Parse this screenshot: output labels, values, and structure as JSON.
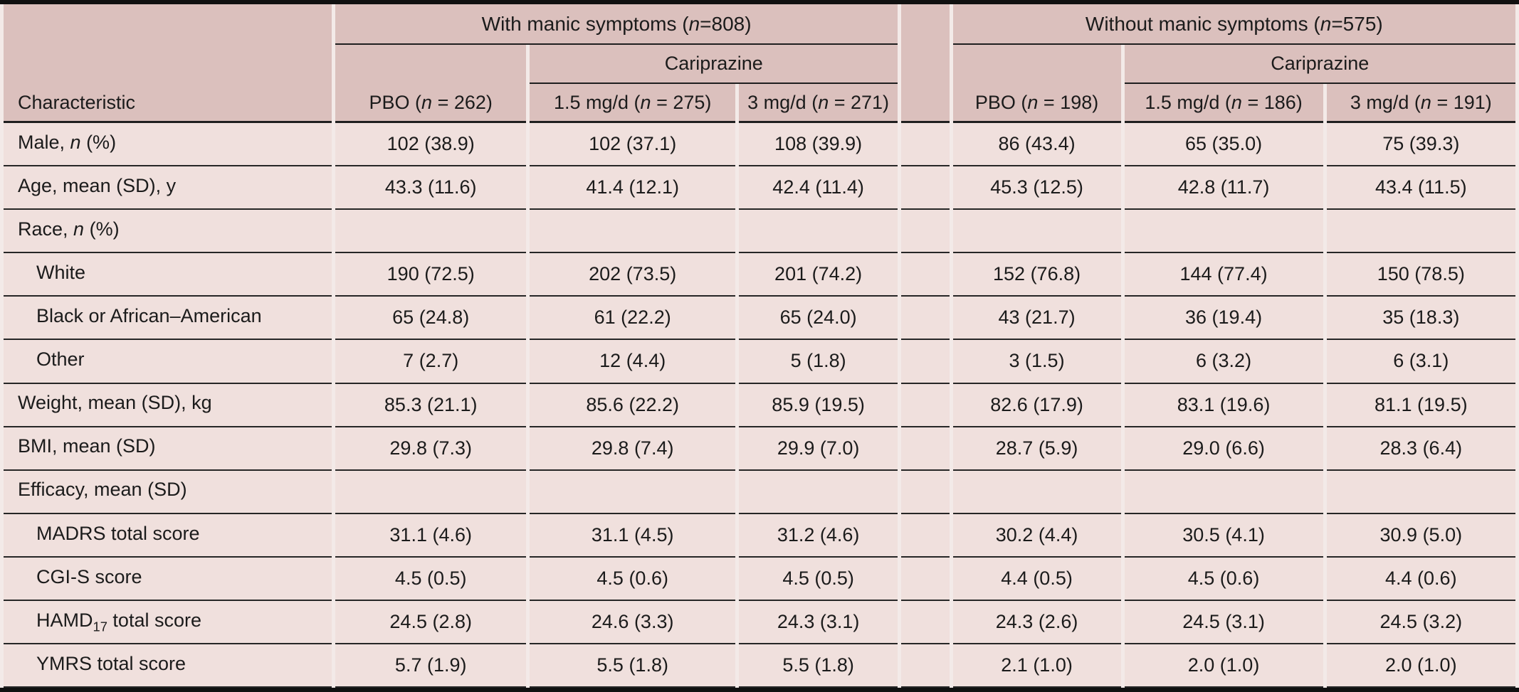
{
  "header": {
    "characteristic": "Characteristic",
    "group_with": {
      "pre": "With manic symptoms (",
      "it": "n",
      "post": "=808)"
    },
    "group_without": {
      "pre": "Without manic symptoms (",
      "it": "n",
      "post": "=575)"
    },
    "subgroup_left": "Cariprazine",
    "subgroup_right": "Cariprazine",
    "cols": [
      {
        "pre": "PBO (",
        "it": "n",
        "post": " = 262)"
      },
      {
        "pre": "1.5 mg/d (",
        "it": "n",
        "post": " = 275)"
      },
      {
        "pre": "3 mg/d (",
        "it": "n",
        "post": " = 271)"
      },
      {
        "pre": "PBO (",
        "it": "n",
        "post": " = 198)"
      },
      {
        "pre": "1.5 mg/d (",
        "it": "n",
        "post": " = 186)"
      },
      {
        "pre": "3 mg/d (",
        "it": "n",
        "post": " = 191)"
      }
    ]
  },
  "rows": [
    {
      "label": {
        "pre": "Male, ",
        "it": "n",
        "post": " (%)"
      },
      "indent": false,
      "values": [
        "102 (38.9)",
        "102 (37.1)",
        "108 (39.9)",
        "86 (43.4)",
        "65 (35.0)",
        "75 (39.3)"
      ]
    },
    {
      "label": {
        "pre": "Age, mean (SD), y"
      },
      "indent": false,
      "values": [
        "43.3 (11.6)",
        "41.4 (12.1)",
        "42.4 (11.4)",
        "45.3 (12.5)",
        "42.8 (11.7)",
        "43.4 (11.5)"
      ]
    },
    {
      "label": {
        "pre": "Race, ",
        "it": "n",
        "post": " (%)"
      },
      "indent": false,
      "values": [
        "",
        "",
        "",
        "",
        "",
        ""
      ]
    },
    {
      "label": {
        "pre": "White"
      },
      "indent": true,
      "values": [
        "190 (72.5)",
        "202 (73.5)",
        "201 (74.2)",
        "152 (76.8)",
        "144 (77.4)",
        "150 (78.5)"
      ]
    },
    {
      "label": {
        "pre": "Black or African–American"
      },
      "indent": true,
      "values": [
        "65 (24.8)",
        "61 (22.2)",
        "65 (24.0)",
        "43 (21.7)",
        "36 (19.4)",
        "35 (18.3)"
      ]
    },
    {
      "label": {
        "pre": "Other"
      },
      "indent": true,
      "values": [
        "7 (2.7)",
        "12 (4.4)",
        "5 (1.8)",
        "3 (1.5)",
        "6 (3.2)",
        "6 (3.1)"
      ]
    },
    {
      "label": {
        "pre": "Weight, mean (SD), kg"
      },
      "indent": false,
      "values": [
        "85.3 (21.1)",
        "85.6 (22.2)",
        "85.9 (19.5)",
        "82.6 (17.9)",
        "83.1 (19.6)",
        "81.1 (19.5)"
      ]
    },
    {
      "label": {
        "pre": "BMI, mean (SD)"
      },
      "indent": false,
      "values": [
        "29.8 (7.3)",
        "29.8 (7.4)",
        "29.9 (7.0)",
        "28.7 (5.9)",
        "29.0 (6.6)",
        "28.3 (6.4)"
      ]
    },
    {
      "label": {
        "pre": "Efficacy, mean (SD)"
      },
      "indent": false,
      "values": [
        "",
        "",
        "",
        "",
        "",
        ""
      ]
    },
    {
      "label": {
        "pre": "MADRS total score"
      },
      "indent": true,
      "values": [
        "31.1 (4.6)",
        "31.1 (4.5)",
        "31.2 (4.6)",
        "30.2 (4.4)",
        "30.5 (4.1)",
        "30.9 (5.0)"
      ]
    },
    {
      "label": {
        "pre": "CGI-S score"
      },
      "indent": true,
      "values": [
        "4.5 (0.5)",
        "4.5 (0.6)",
        "4.5 (0.5)",
        "4.4 (0.5)",
        "4.5 (0.6)",
        "4.4 (0.6)"
      ]
    },
    {
      "label": {
        "pre": "HAMD",
        "sub": "17",
        "post": " total score"
      },
      "indent": true,
      "values": [
        "24.5 (2.8)",
        "24.6 (3.3)",
        "24.3 (3.1)",
        "24.3 (2.6)",
        "24.5 (3.1)",
        "24.5 (3.2)"
      ]
    },
    {
      "label": {
        "pre": "YMRS total score"
      },
      "indent": true,
      "values": [
        "5.7 (1.9)",
        "5.5 (1.8)",
        "5.5 (1.8)",
        "2.1 (1.0)",
        "2.0 (1.0)",
        "2.0 (1.0)"
      ]
    }
  ],
  "colors": {
    "header_bg": "#dbc0bd",
    "body_bg": "#f0e0dd",
    "rule": "#1f1f1f",
    "frame": "#101010",
    "text": "#1b1b1b"
  }
}
